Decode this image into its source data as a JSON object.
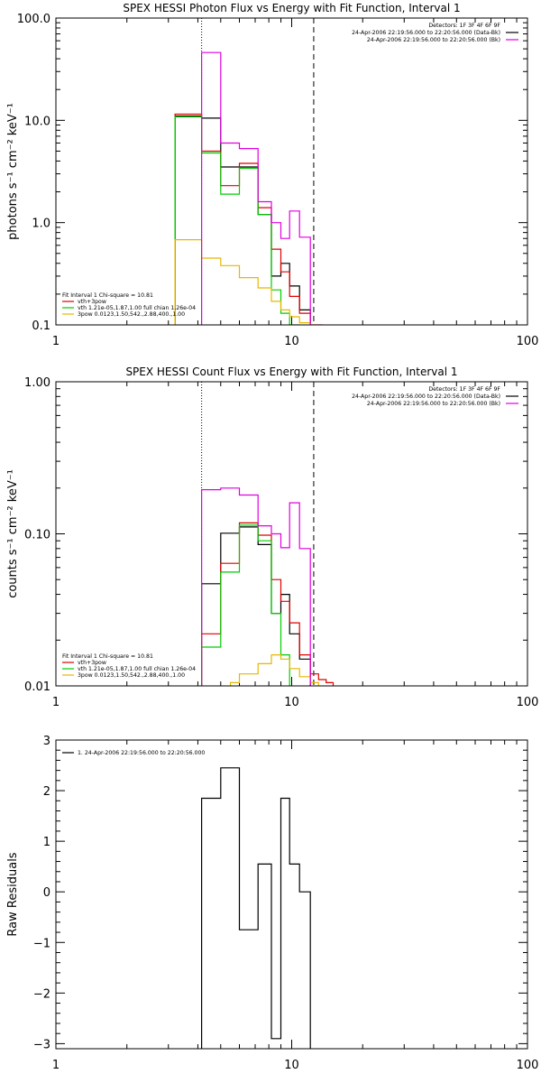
{
  "chart_data": [
    {
      "type": "line",
      "step": true,
      "title": "SPEX HESSI Photon Flux vs Energy with Fit Function, Interval 1",
      "ylabel": "photons s⁻¹ cm⁻² keV⁻¹",
      "xlabel": "",
      "xscale": "log",
      "yscale": "log",
      "xlim": [
        1,
        100
      ],
      "ylim": [
        0.1,
        100
      ],
      "xticks": [
        {
          "v": 1,
          "label": "1"
        },
        {
          "v": 10,
          "label": "10"
        },
        {
          "v": 100,
          "label": "100"
        }
      ],
      "yticks": [
        {
          "v": 0.1,
          "label": "0.1"
        },
        {
          "v": 1,
          "label": "1.0"
        },
        {
          "v": 10,
          "label": "10.0"
        },
        {
          "v": 100,
          "label": "100.0"
        }
      ],
      "vlines": [
        {
          "x": 4.15,
          "style": "dotted"
        },
        {
          "x": 12.4,
          "style": "dashed"
        }
      ],
      "info_lines": [
        {
          "text": "Detectors: 1F 3F 4F 6F 9F",
          "color": "#000000"
        },
        {
          "text": "24-Apr-2006 22:19:56.000 to 22:20:56.000 (Data-Bk)",
          "color": "#000000"
        },
        {
          "text": "24-Apr-2006 22:19:56.000 to 22:20:56.000 (Bk)",
          "color": "#e000e0"
        }
      ],
      "legend": [
        {
          "text": "Fit Interval 1    Chi-square = 10.81",
          "color": null
        },
        {
          "text": "vth+3pow",
          "color": "#dd0000"
        },
        {
          "text": "vth 1.21e-05,1.87,1.00  full chian 1.26e-04",
          "color": "#00cc00"
        },
        {
          "text": "3pow 0.0123,1.50,542.,2.88,400.,1.00",
          "color": "#e6b800"
        }
      ],
      "series": [
        {
          "color": "#000000",
          "edges": [
            3.2,
            4.15,
            5.0,
            6.0,
            7.2,
            8.2,
            9.0,
            9.8,
            10.8,
            12.0
          ],
          "values": [
            11.0,
            10.5,
            3.5,
            3.5,
            1.2,
            0.3,
            0.4,
            0.24,
            0.14
          ]
        },
        {
          "color": "#dd0000",
          "edges": [
            3.2,
            4.15,
            5.0,
            6.0,
            7.2,
            8.2,
            9.0,
            9.8,
            10.8,
            12.0,
            13.5
          ],
          "values": [
            11.5,
            5.0,
            2.3,
            3.8,
            1.4,
            0.55,
            0.33,
            0.19,
            0.13,
            0.1
          ]
        },
        {
          "color": "#00cc00",
          "edges": [
            3.2,
            4.15,
            5.0,
            6.0,
            7.2,
            8.2,
            9.0,
            9.8,
            10.8
          ],
          "values": [
            10.8,
            4.8,
            1.9,
            3.4,
            1.2,
            0.22,
            0.13,
            0.1
          ]
        },
        {
          "color": "#e6b800",
          "edges": [
            3.2,
            4.15,
            5.0,
            6.0,
            7.2,
            8.2,
            9.0,
            9.8,
            10.8,
            12.0
          ],
          "values": [
            0.68,
            0.45,
            0.38,
            0.29,
            0.23,
            0.17,
            0.14,
            0.12,
            0.105
          ]
        },
        {
          "color": "#e000e0",
          "edges": [
            4.15,
            5.0,
            6.0,
            7.2,
            8.2,
            9.0,
            9.8,
            10.8,
            12.0
          ],
          "values": [
            46.0,
            6.0,
            5.3,
            1.6,
            1.0,
            0.7,
            1.3,
            0.72
          ]
        }
      ]
    },
    {
      "type": "line",
      "step": true,
      "title": "SPEX HESSI Count Flux vs Energy with Fit Function, Interval 1",
      "ylabel": "counts s⁻¹ cm⁻² keV⁻¹",
      "xlabel": "",
      "xscale": "log",
      "yscale": "log",
      "xlim": [
        1,
        100
      ],
      "ylim": [
        0.01,
        1
      ],
      "xticks": [
        {
          "v": 1,
          "label": "1"
        },
        {
          "v": 10,
          "label": "10"
        },
        {
          "v": 100,
          "label": "100"
        }
      ],
      "yticks": [
        {
          "v": 0.01,
          "label": "0.01"
        },
        {
          "v": 0.1,
          "label": "0.10"
        },
        {
          "v": 1,
          "label": "1.00"
        }
      ],
      "vlines": [
        {
          "x": 4.15,
          "style": "dotted"
        },
        {
          "x": 12.4,
          "style": "dashed"
        }
      ],
      "info_lines": [
        {
          "text": "Detectors: 1F 3F 4F 6F 9F",
          "color": "#000000"
        },
        {
          "text": "24-Apr-2006 22:19:56.000 to 22:20:56.000 (Data-Bk)",
          "color": "#000000"
        },
        {
          "text": "24-Apr-2006 22:19:56.000 to 22:20:56.000 (Bk)",
          "color": "#e000e0"
        }
      ],
      "legend": [
        {
          "text": "Fit Interval 1    Chi-square = 10.81",
          "color": null
        },
        {
          "text": "vth+3pow",
          "color": "#dd0000"
        },
        {
          "text": "vth 1.21e-05,1.87,1.00  full chian 1.26e-04",
          "color": "#00cc00"
        },
        {
          "text": "3pow 0.0123,1.50,542.,2.88,400.,1.00",
          "color": "#e6b800"
        }
      ],
      "series": [
        {
          "color": "#000000",
          "edges": [
            4.15,
            5.0,
            6.0,
            7.2,
            8.2,
            9.0,
            9.8,
            10.8,
            12.0
          ],
          "values": [
            0.047,
            0.101,
            0.111,
            0.085,
            0.03,
            0.04,
            0.022,
            0.015
          ]
        },
        {
          "color": "#dd0000",
          "edges": [
            4.15,
            5.0,
            6.0,
            7.2,
            8.2,
            9.0,
            9.8,
            10.8,
            12.0,
            13.0,
            14.0,
            15.0
          ],
          "values": [
            0.022,
            0.064,
            0.118,
            0.098,
            0.05,
            0.036,
            0.026,
            0.016,
            0.012,
            0.011,
            0.0105
          ]
        },
        {
          "color": "#00cc00",
          "edges": [
            4.15,
            5.0,
            6.0,
            7.2,
            8.2,
            9.0,
            9.8
          ],
          "values": [
            0.018,
            0.056,
            0.114,
            0.09,
            0.03,
            0.016
          ]
        },
        {
          "color": "#e6b800",
          "edges": [
            5.5,
            6.0,
            7.2,
            8.2,
            9.0,
            9.8,
            10.8,
            12.0,
            13.0
          ],
          "values": [
            0.0105,
            0.012,
            0.014,
            0.016,
            0.015,
            0.013,
            0.0115,
            0.0105
          ]
        },
        {
          "color": "#e000e0",
          "edges": [
            4.15,
            5.0,
            6.0,
            7.2,
            8.2,
            9.0,
            9.8,
            10.8,
            12.0
          ],
          "values": [
            0.195,
            0.2,
            0.18,
            0.113,
            0.1,
            0.081,
            0.16,
            0.08
          ]
        }
      ]
    },
    {
      "type": "line",
      "step": true,
      "title": "",
      "ylabel": "Raw Residuals",
      "xlabel": "",
      "xscale": "log",
      "yscale": "linear",
      "xlim": [
        1,
        100
      ],
      "ylim": [
        -3.1,
        3
      ],
      "xticks": [
        {
          "v": 1,
          "label": "1"
        },
        {
          "v": 10,
          "label": "10"
        },
        {
          "v": 100,
          "label": "100"
        }
      ],
      "yticks": [
        {
          "v": -3,
          "label": "−3"
        },
        {
          "v": -2,
          "label": "−2"
        },
        {
          "v": -1,
          "label": "−1"
        },
        {
          "v": 0,
          "label": "0"
        },
        {
          "v": 1,
          "label": "1"
        },
        {
          "v": 2,
          "label": "2"
        },
        {
          "v": 3,
          "label": "3"
        }
      ],
      "vlines": [],
      "info_lines": [],
      "legend": [
        {
          "text": "1. 24-Apr-2006 22:19:56.000 to 22:20:56.000",
          "color": "#000000"
        }
      ],
      "series": [
        {
          "color": "#000000",
          "edges": [
            4.15,
            5.0,
            6.0,
            7.2,
            8.2,
            9.0,
            9.8,
            10.8,
            12.0
          ],
          "values": [
            1.85,
            2.45,
            -0.75,
            0.55,
            -2.9,
            1.85,
            0.55,
            0.0
          ],
          "drop_to_bottom": true
        }
      ]
    }
  ]
}
